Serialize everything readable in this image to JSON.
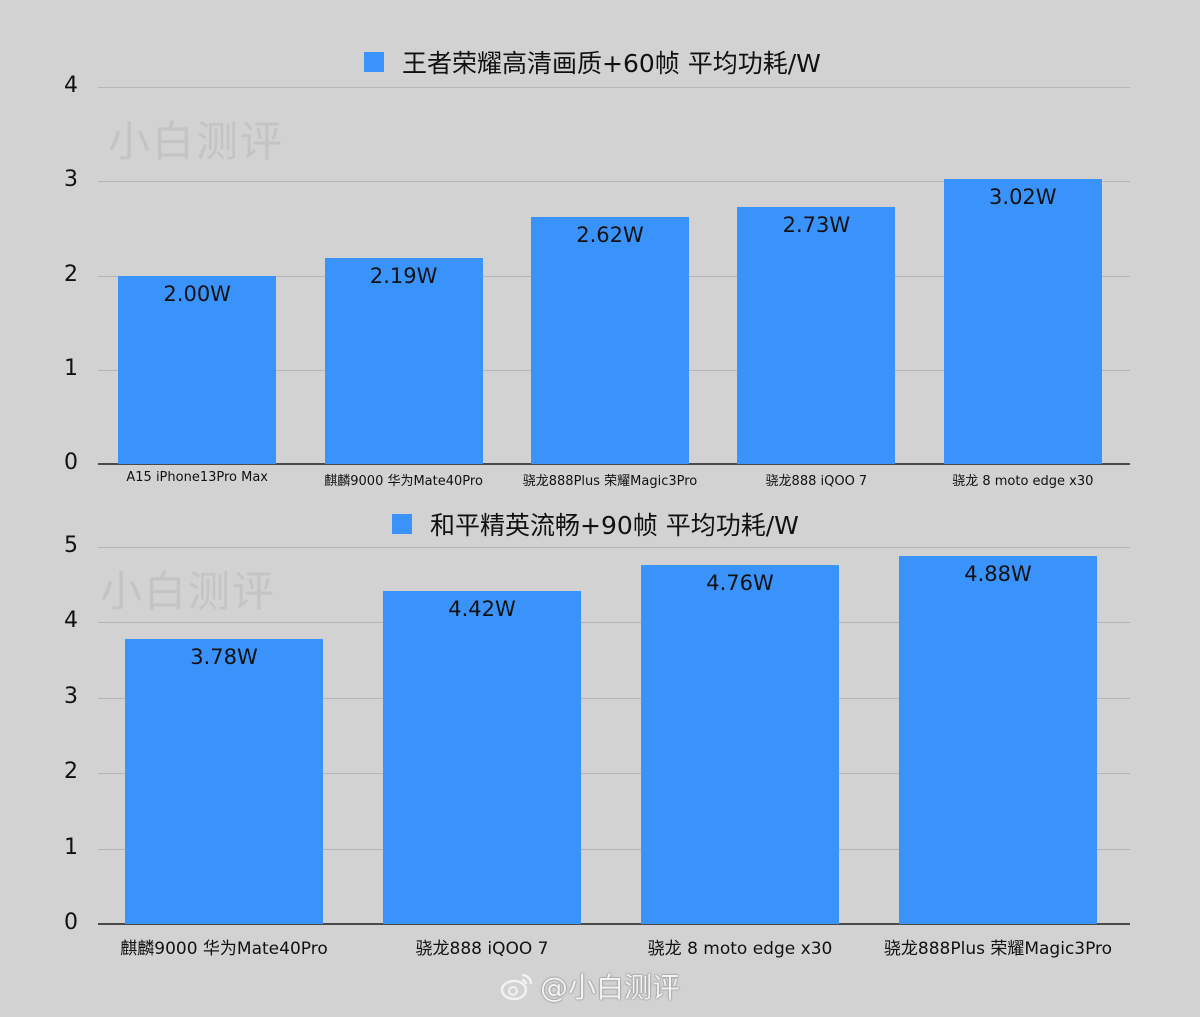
{
  "colors": {
    "bar": "#3a93fb",
    "background": "#d2d2d2"
  },
  "watermark": "小白测评",
  "footer": {
    "icon": "weibo-icon",
    "text": "@小白测评"
  },
  "chart_data": [
    {
      "type": "bar",
      "title": "王者荣耀高清画质+60帧 平均功耗/W",
      "legend": [
        "王者荣耀高清画质+60帧 平均功耗/W"
      ],
      "legend_position": "top",
      "xlabel": "",
      "ylabel": "",
      "ylim": [
        0,
        4
      ],
      "yticks": [
        "4",
        "3",
        "2",
        "1",
        "0"
      ],
      "grid": true,
      "categories": [
        "A15 iPhone13Pro Max",
        "麒麟9000 华为Mate40Pro",
        "骁龙888Plus 荣耀Magic3Pro",
        "骁龙888 iQOO 7",
        "骁龙 8 moto edge x30"
      ],
      "values": [
        2.0,
        2.19,
        2.62,
        2.73,
        3.02
      ],
      "data_labels": [
        "2.00W",
        "2.19W",
        "2.62W",
        "2.73W",
        "3.02W"
      ]
    },
    {
      "type": "bar",
      "title": "和平精英流畅+90帧 平均功耗/W",
      "legend": [
        "和平精英流畅+90帧 平均功耗/W"
      ],
      "legend_position": "top",
      "xlabel": "",
      "ylabel": "",
      "ylim": [
        0,
        5
      ],
      "yticks": [
        "5",
        "4",
        "3",
        "2",
        "1",
        "0"
      ],
      "grid": true,
      "categories": [
        "麒麟9000 华为Mate40Pro",
        "骁龙888 iQOO 7",
        "骁龙 8 moto edge x30",
        "骁龙888Plus 荣耀Magic3Pro"
      ],
      "values": [
        3.78,
        4.42,
        4.76,
        4.88
      ],
      "data_labels": [
        "3.78W",
        "4.42W",
        "4.76W",
        "4.88W"
      ]
    }
  ]
}
